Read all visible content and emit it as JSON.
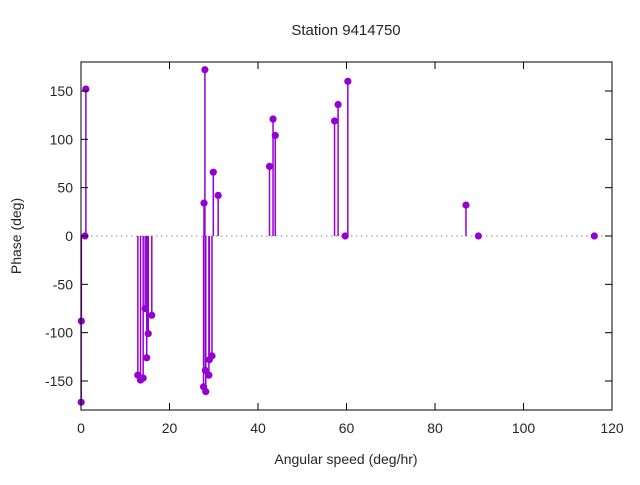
{
  "title": "Station 9414750",
  "colors": {
    "marker": "#9400D3",
    "axis": "#000000",
    "zero_line": "#8a8a8a",
    "text": "#262626",
    "background": "#ffffff"
  },
  "chart_data": {
    "type": "scatter",
    "style": "impulses-with-points (stem plot, vertical lines from y=0 to each point)",
    "title": "Station 9414750",
    "xlabel": "Angular speed (deg/hr)",
    "ylabel": "Phase (deg)",
    "xlim": [
      0,
      120
    ],
    "ylim": [
      -180,
      180
    ],
    "xticks": [
      0,
      20,
      40,
      60,
      80,
      100,
      120
    ],
    "yticks": [
      -150,
      -100,
      -50,
      0,
      50,
      100,
      150
    ],
    "grid": false,
    "legend": "none",
    "zero_line_dotted": true,
    "marker_color": "#9400D3",
    "points": [
      {
        "x": 0.04,
        "y": -172
      },
      {
        "x": 0.08,
        "y": -88
      },
      {
        "x": 0.9,
        "y": 0
      },
      {
        "x": 1.1,
        "y": 152
      },
      {
        "x": 12.85,
        "y": -144
      },
      {
        "x": 13.45,
        "y": -149
      },
      {
        "x": 14.05,
        "y": -147
      },
      {
        "x": 14.5,
        "y": -75
      },
      {
        "x": 14.85,
        "y": -126
      },
      {
        "x": 15.2,
        "y": -101
      },
      {
        "x": 16.0,
        "y": -82
      },
      {
        "x": 27.7,
        "y": -156
      },
      {
        "x": 27.8,
        "y": 34
      },
      {
        "x": 28.0,
        "y": 172
      },
      {
        "x": 28.1,
        "y": -139
      },
      {
        "x": 28.2,
        "y": -161
      },
      {
        "x": 28.9,
        "y": -144
      },
      {
        "x": 29.0,
        "y": -128
      },
      {
        "x": 29.6,
        "y": -124
      },
      {
        "x": 29.9,
        "y": 66
      },
      {
        "x": 31.0,
        "y": 42
      },
      {
        "x": 42.6,
        "y": 72
      },
      {
        "x": 43.4,
        "y": 121
      },
      {
        "x": 43.9,
        "y": 104
      },
      {
        "x": 57.3,
        "y": 119
      },
      {
        "x": 58.1,
        "y": 136
      },
      {
        "x": 59.7,
        "y": 0
      },
      {
        "x": 60.3,
        "y": 160
      },
      {
        "x": 87.0,
        "y": 32
      },
      {
        "x": 89.8,
        "y": 0
      },
      {
        "x": 116.0,
        "y": 0
      }
    ]
  }
}
